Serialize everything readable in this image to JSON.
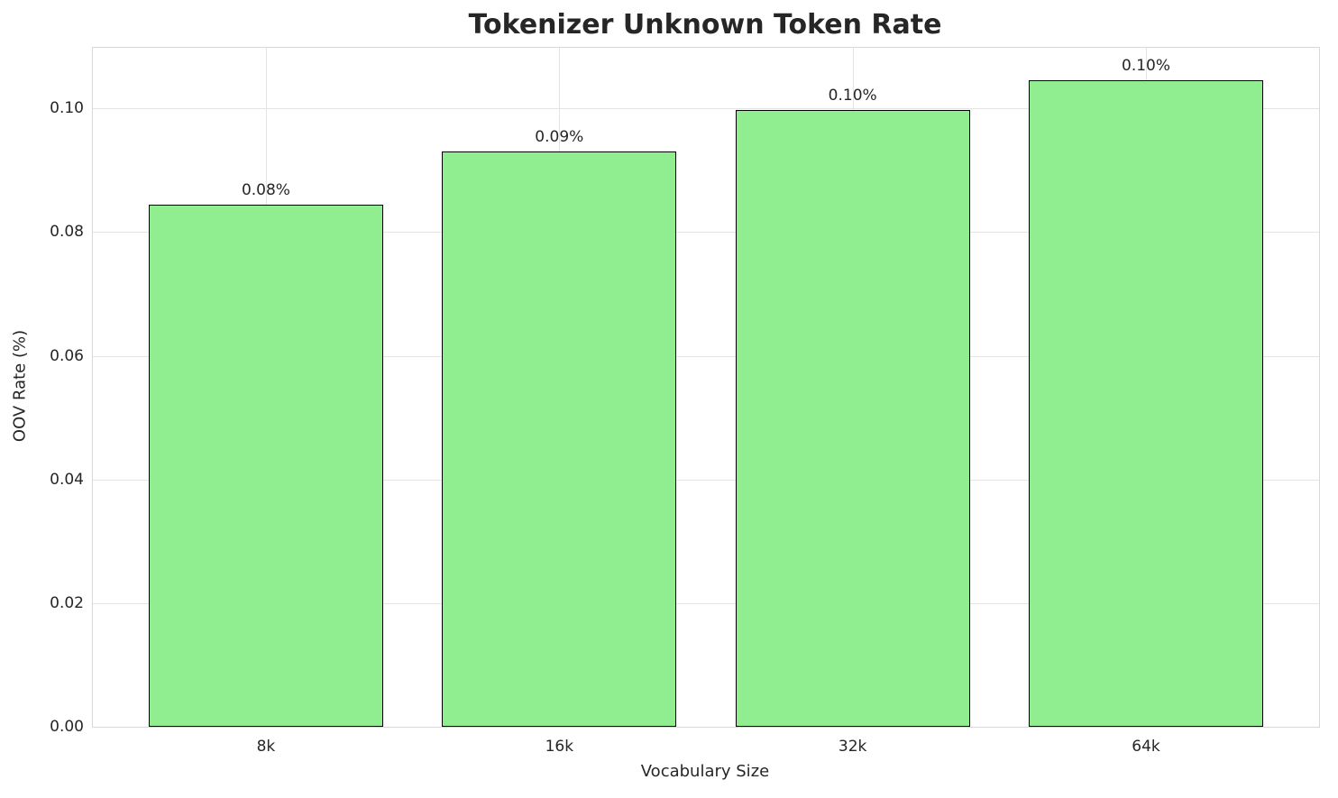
{
  "chart_data": {
    "type": "bar",
    "title": "Tokenizer Unknown Token Rate",
    "xlabel": "Vocabulary Size",
    "ylabel": "OOV Rate (%)",
    "categories": [
      "8k",
      "16k",
      "32k",
      "64k"
    ],
    "values": [
      0.0845,
      0.093,
      0.0998,
      0.1045
    ],
    "bar_labels": [
      "0.08%",
      "0.09%",
      "0.10%",
      "0.10%"
    ],
    "yticks": [
      0.0,
      0.02,
      0.04,
      0.06,
      0.08,
      0.1
    ],
    "ytick_labels": [
      "0.00",
      "0.02",
      "0.04",
      "0.06",
      "0.08",
      "0.10"
    ],
    "ylim": [
      0,
      0.1098
    ],
    "grid": true,
    "legend": "none",
    "bar_color": "#90EE90",
    "bar_edge_color": "#000000",
    "grid_color": "#e4e4e4"
  }
}
